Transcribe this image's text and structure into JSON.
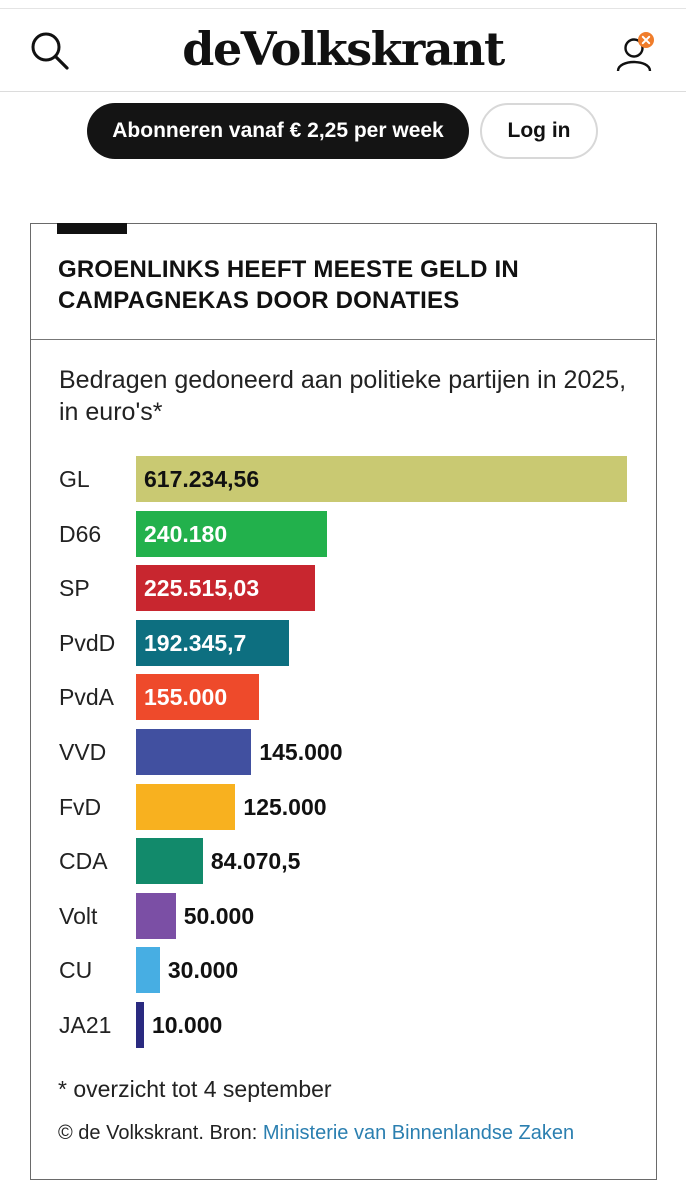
{
  "header": {
    "logo": "deVolkskrant",
    "search_icon": "search-icon",
    "user_icon": "user-icon",
    "notification_color": "#f07d2b"
  },
  "actions": {
    "subscribe_label": "Abonneren vanaf € 2,25 per week",
    "login_label": "Log in"
  },
  "card": {
    "title": "GROENLINKS HEEFT MEESTE GELD IN CAMPAGNEKAS DOOR DONATIES",
    "subtitle": "Bedragen gedoneerd aan politieke partijen in 2025, in euro's*",
    "footnote": "* overzicht tot 4 september",
    "source_prefix": "© de Volkskrant. Bron: ",
    "source_link": "Ministerie van Binnenlandse Zaken"
  },
  "chart_data": {
    "type": "bar",
    "orientation": "horizontal",
    "title": "GROENLINKS HEEFT MEESTE GELD IN CAMPAGNEKAS DOOR DONATIES",
    "subtitle": "Bedragen gedoneerd aan politieke partijen in 2025, in euro's*",
    "categories": [
      "GL",
      "D66",
      "SP",
      "PvdD",
      "PvdA",
      "VVD",
      "FvD",
      "CDA",
      "Volt",
      "CU",
      "JA21"
    ],
    "values": [
      617234.56,
      240180,
      225515.03,
      192345.7,
      155000,
      145000,
      125000,
      84070.5,
      50000,
      30000,
      10000
    ],
    "value_labels": [
      "617.234,56",
      "240.180",
      "225.515,03",
      "192.345,7",
      "155.000",
      "145.000",
      "125.000",
      "84.070,5",
      "50.000",
      "30.000",
      "10.000"
    ],
    "colors": [
      "#c9c972",
      "#22b14c",
      "#c8262f",
      "#0d6f80",
      "#ee4a2b",
      "#4150a0",
      "#f8b11f",
      "#128a6b",
      "#7b4fa5",
      "#47aee3",
      "#2a2a80"
    ],
    "label_inside": [
      true,
      true,
      true,
      true,
      true,
      false,
      false,
      false,
      false,
      false,
      false
    ],
    "xlim": [
      0,
      617234.56
    ],
    "grid": false,
    "legend": "none"
  }
}
